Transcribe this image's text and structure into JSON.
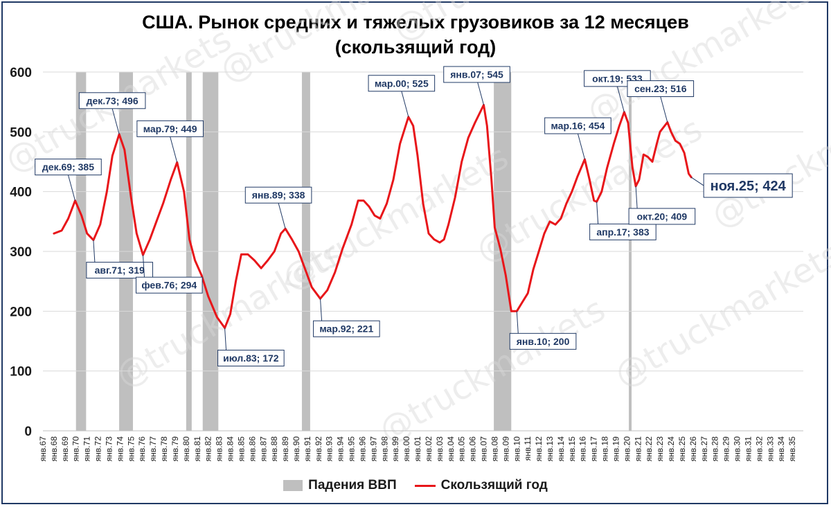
{
  "chart_data": {
    "type": "line",
    "title": "США. Рынок средних и тяжелых грузовиков за 12 месяцев",
    "subtitle": "(скользящий год)",
    "ylim": [
      0,
      600
    ],
    "y_ticks": [
      0,
      100,
      200,
      300,
      400,
      500,
      600
    ],
    "grid": true,
    "x_tick_labels": [
      "янв.67",
      "янв.68",
      "янв.69",
      "янв.70",
      "янв.71",
      "янв.72",
      "янв.73",
      "янв.74",
      "янв.75",
      "янв.76",
      "янв.77",
      "янв.78",
      "янв.79",
      "янв.80",
      "янв.81",
      "янв.82",
      "янв.83",
      "янв.84",
      "янв.85",
      "янв.86",
      "янв.87",
      "янв.88",
      "янв.89",
      "янв.90",
      "янв.91",
      "янв.92",
      "янв.93",
      "янв.94",
      "янв.95",
      "янв.96",
      "янв.97",
      "янв.98",
      "янв.99",
      "янв.00",
      "янв.01",
      "янв.02",
      "янв.03",
      "янв.04",
      "янв.05",
      "янв.06",
      "янв.07",
      "янв.08",
      "янв.09",
      "янв.10",
      "янв.11",
      "янв.12",
      "янв.13",
      "янв.14",
      "янв.15",
      "янв.16",
      "янв.17",
      "янв.18",
      "янв.19",
      "янв.20",
      "янв.21",
      "янв.22",
      "янв.23",
      "янв.24",
      "янв.25",
      "янв.26",
      "янв.27",
      "янв.28",
      "янв.29",
      "янв.30",
      "янв.31",
      "янв.32",
      "янв.33",
      "янв.34",
      "янв.35"
    ],
    "series": [
      {
        "name": "Скользящий год",
        "color": "#e8161a",
        "points": [
          [
            1968.0,
            330
          ],
          [
            1968.7,
            335
          ],
          [
            1969.3,
            355
          ],
          [
            1969.92,
            385
          ],
          [
            1970.5,
            360
          ],
          [
            1971.0,
            330
          ],
          [
            1971.58,
            319
          ],
          [
            1972.2,
            345
          ],
          [
            1972.8,
            400
          ],
          [
            1973.3,
            460
          ],
          [
            1973.92,
            496
          ],
          [
            1974.4,
            470
          ],
          [
            1975.0,
            390
          ],
          [
            1975.5,
            330
          ],
          [
            1976.08,
            294
          ],
          [
            1976.7,
            320
          ],
          [
            1977.3,
            350
          ],
          [
            1977.9,
            380
          ],
          [
            1978.6,
            420
          ],
          [
            1979.17,
            449
          ],
          [
            1979.8,
            400
          ],
          [
            1980.3,
            320
          ],
          [
            1980.8,
            285
          ],
          [
            1981.4,
            260
          ],
          [
            1982.0,
            225
          ],
          [
            1982.8,
            190
          ],
          [
            1983.5,
            172
          ],
          [
            1984.0,
            195
          ],
          [
            1984.5,
            250
          ],
          [
            1985.0,
            295
          ],
          [
            1985.6,
            295
          ],
          [
            1986.2,
            285
          ],
          [
            1986.8,
            272
          ],
          [
            1987.4,
            285
          ],
          [
            1988.0,
            300
          ],
          [
            1988.6,
            330
          ],
          [
            1989.0,
            338
          ],
          [
            1989.6,
            320
          ],
          [
            1990.2,
            300
          ],
          [
            1990.8,
            270
          ],
          [
            1991.4,
            240
          ],
          [
            1992.17,
            221
          ],
          [
            1992.8,
            235
          ],
          [
            1993.5,
            265
          ],
          [
            1994.2,
            305
          ],
          [
            1995.0,
            345
          ],
          [
            1995.6,
            385
          ],
          [
            1996.1,
            385
          ],
          [
            1996.6,
            375
          ],
          [
            1997.1,
            360
          ],
          [
            1997.6,
            355
          ],
          [
            1998.2,
            380
          ],
          [
            1998.8,
            420
          ],
          [
            1999.4,
            480
          ],
          [
            2000.17,
            525
          ],
          [
            2000.6,
            510
          ],
          [
            2001.0,
            460
          ],
          [
            2001.5,
            380
          ],
          [
            2002.0,
            330
          ],
          [
            2002.5,
            320
          ],
          [
            2003.0,
            315
          ],
          [
            2003.4,
            320
          ],
          [
            2003.8,
            345
          ],
          [
            2004.4,
            390
          ],
          [
            2005.0,
            450
          ],
          [
            2005.6,
            490
          ],
          [
            2006.2,
            515
          ],
          [
            2007.0,
            545
          ],
          [
            2007.3,
            510
          ],
          [
            2007.7,
            420
          ],
          [
            2008.0,
            340
          ],
          [
            2008.5,
            305
          ],
          [
            2009.0,
            260
          ],
          [
            2009.5,
            200
          ],
          [
            2010.0,
            200
          ],
          [
            2010.5,
            215
          ],
          [
            2011.0,
            230
          ],
          [
            2011.5,
            270
          ],
          [
            2012.0,
            300
          ],
          [
            2012.5,
            330
          ],
          [
            2013.0,
            350
          ],
          [
            2013.5,
            345
          ],
          [
            2014.0,
            355
          ],
          [
            2014.5,
            380
          ],
          [
            2015.0,
            400
          ],
          [
            2015.5,
            425
          ],
          [
            2016.17,
            454
          ],
          [
            2016.6,
            420
          ],
          [
            2017.0,
            385
          ],
          [
            2017.25,
            383
          ],
          [
            2017.7,
            400
          ],
          [
            2018.2,
            440
          ],
          [
            2018.8,
            480
          ],
          [
            2019.3,
            510
          ],
          [
            2019.75,
            533
          ],
          [
            2020.1,
            515
          ],
          [
            2020.5,
            440
          ],
          [
            2020.8,
            409
          ],
          [
            2021.1,
            420
          ],
          [
            2021.5,
            462
          ],
          [
            2021.9,
            458
          ],
          [
            2022.3,
            450
          ],
          [
            2022.7,
            480
          ],
          [
            2023.0,
            500
          ],
          [
            2023.67,
            516
          ],
          [
            2024.0,
            500
          ],
          [
            2024.4,
            485
          ],
          [
            2024.8,
            480
          ],
          [
            2025.2,
            465
          ],
          [
            2025.6,
            430
          ],
          [
            2025.83,
            424
          ]
        ]
      }
    ],
    "recession_bars": {
      "name": "Падения ВВП",
      "color": "#bfbfbf",
      "periods": [
        [
          1970.0,
          1970.917
        ],
        [
          1973.917,
          1975.167
        ],
        [
          1980.0,
          1980.5
        ],
        [
          1981.5,
          1982.917
        ],
        [
          1990.5,
          1991.25
        ],
        [
          2007.917,
          2009.5
        ],
        [
          2020.167,
          2020.417
        ]
      ]
    },
    "annotations": [
      {
        "label": "дек.69; 385",
        "x": 1969.92,
        "y": 385,
        "pos": "above"
      },
      {
        "label": "авг.71; 319",
        "x": 1971.58,
        "y": 319,
        "pos": "below"
      },
      {
        "label": "дек.73; 496",
        "x": 1973.92,
        "y": 496,
        "pos": "above"
      },
      {
        "label": "фев.76; 294",
        "x": 1976.08,
        "y": 294,
        "pos": "below"
      },
      {
        "label": "мар.79; 449",
        "x": 1979.17,
        "y": 449,
        "pos": "above"
      },
      {
        "label": "июл.83; 172",
        "x": 1983.5,
        "y": 172,
        "pos": "below"
      },
      {
        "label": "янв.89; 338",
        "x": 1989.0,
        "y": 338,
        "pos": "above"
      },
      {
        "label": "мар.92; 221",
        "x": 1992.17,
        "y": 221,
        "pos": "below"
      },
      {
        "label": "мар.00; 525",
        "x": 2000.17,
        "y": 525,
        "pos": "above"
      },
      {
        "label": "янв.07; 545",
        "x": 2007.0,
        "y": 545,
        "pos": "above"
      },
      {
        "label": "янв.10; 200",
        "x": 2010.0,
        "y": 200,
        "pos": "below"
      },
      {
        "label": "мар.16; 454",
        "x": 2016.17,
        "y": 454,
        "pos": "above"
      },
      {
        "label": "апр.17; 383",
        "x": 2017.25,
        "y": 383,
        "pos": "below"
      },
      {
        "label": "окт.19; 533",
        "x": 2019.75,
        "y": 533,
        "pos": "above"
      },
      {
        "label": "окт.20; 409",
        "x": 2020.8,
        "y": 409,
        "pos": "below"
      },
      {
        "label": "сен.23; 516",
        "x": 2023.67,
        "y": 516,
        "pos": "above"
      },
      {
        "label": "ноя.25; 424",
        "x": 2025.83,
        "y": 424,
        "pos": "right",
        "emphasis": true
      }
    ],
    "legend": {
      "position": "bottom",
      "items": [
        "Падения ВВП",
        "Скользящий год"
      ]
    },
    "watermark": "@truckmarkets"
  }
}
